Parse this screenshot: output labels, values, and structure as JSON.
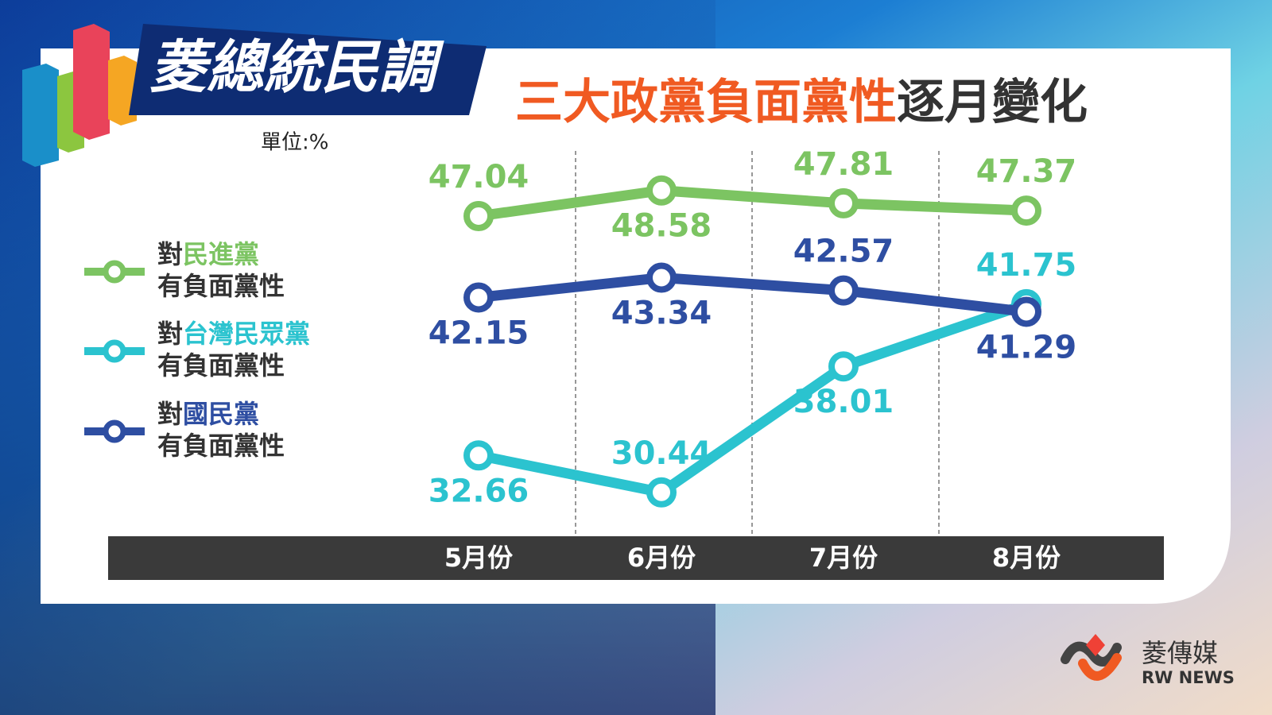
{
  "chart_data": {
    "type": "line",
    "logo_text": "菱總統民調",
    "title": [
      "三大政黨負面黨性",
      "逐月變化"
    ],
    "unit": "單位:%",
    "legend_prefix": "對",
    "legend_suffix": "有負面黨性",
    "categories": [
      "5月份",
      "6月份",
      "7月份",
      "8月份"
    ],
    "series": [
      {
        "name": "民進黨",
        "color": "#7cc462",
        "values": [
          47.04,
          48.58,
          47.81,
          47.37
        ]
      },
      {
        "name": "台灣民眾黨",
        "color": "#2bc3cf",
        "values": [
          32.66,
          30.44,
          38.01,
          41.75
        ]
      },
      {
        "name": "國民黨",
        "color": "#2e4ea2",
        "values": [
          42.15,
          43.34,
          42.57,
          41.29
        ]
      }
    ],
    "brand": "菱傳媒",
    "brand_en": "RW NEWS"
  }
}
